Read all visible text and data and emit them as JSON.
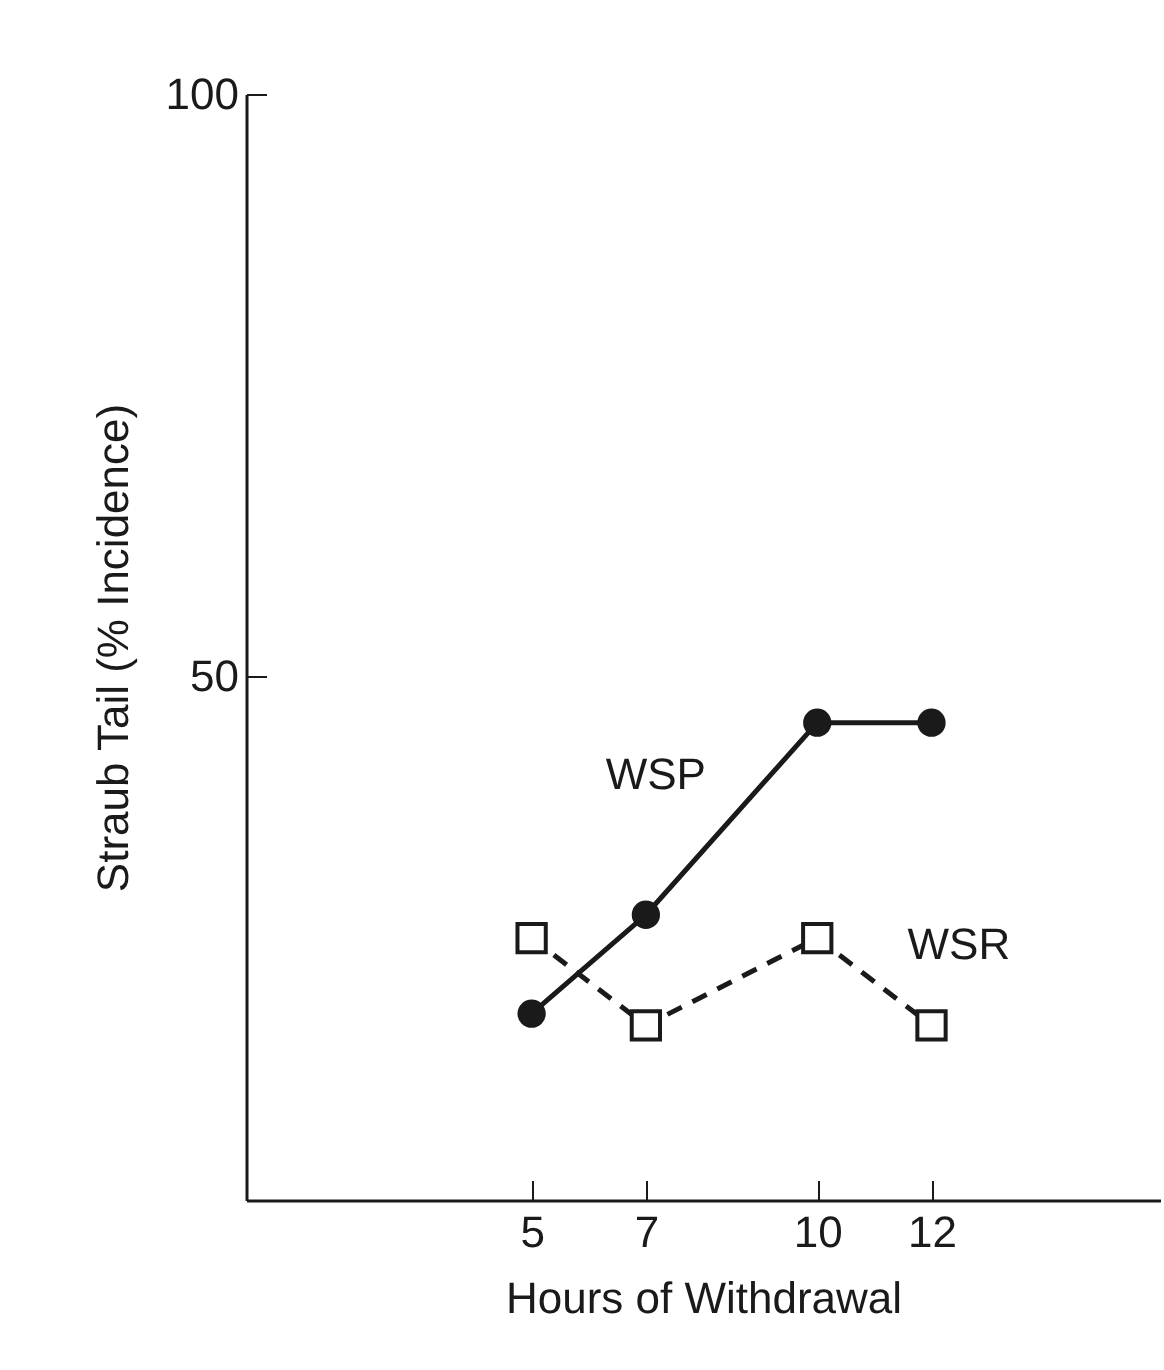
{
  "chart_data": {
    "type": "line",
    "xlabel": "Hours of Withdrawal",
    "ylabel": "Straub Tail (% Incidence)",
    "x": [
      5,
      7,
      10,
      12
    ],
    "xlim": [
      0,
      16
    ],
    "xticks": [
      5,
      7,
      10,
      12
    ],
    "ylim": [
      5,
      100
    ],
    "yticks": [
      50,
      100
    ],
    "grid": false,
    "series": [
      {
        "name": "WSP",
        "color": "#1a1a1a",
        "values": [
          21,
          29.5,
          46,
          46
        ],
        "marker": "circle",
        "line_style": "solid"
      },
      {
        "name": "WSR",
        "color": "#1a1a1a",
        "values": [
          27.5,
          20,
          27.5,
          20
        ],
        "marker": "square",
        "line_style": "dashed"
      }
    ]
  }
}
